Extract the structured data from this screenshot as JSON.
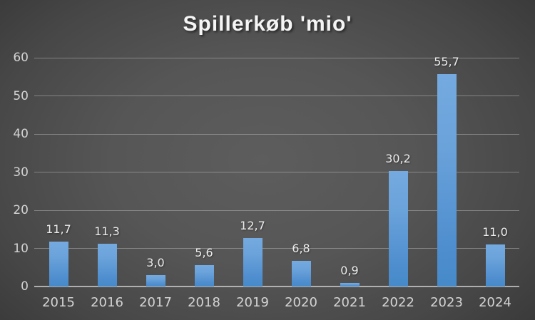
{
  "chart_data": {
    "type": "bar",
    "title": "Spillerkøb 'mio'",
    "categories": [
      "2015",
      "2016",
      "2017",
      "2018",
      "2019",
      "2020",
      "2021",
      "2022",
      "2023",
      "2024"
    ],
    "values": [
      11.7,
      11.3,
      3.0,
      5.6,
      12.7,
      6.8,
      0.9,
      30.2,
      55.7,
      11.0
    ],
    "value_labels": [
      "11,7",
      "11,3",
      "3,0",
      "5,6",
      "12,7",
      "6,8",
      "0,9",
      "30,2",
      "55,7",
      "11,0"
    ],
    "xlabel": "",
    "ylabel": "",
    "ylim": [
      0,
      60
    ],
    "yticks": [
      0,
      10,
      20,
      30,
      40,
      50,
      60
    ],
    "grid": true,
    "legend_position": "none",
    "decimal_separator": ",",
    "colors": {
      "bar_top": "#74aadf",
      "bar_bottom": "#468ac9",
      "background_center": "#5d5d5d",
      "background_edge": "#202020",
      "gridline": "#a9a9a9",
      "axis_line": "#c8c8c8",
      "tick_label": "#d4d4d4",
      "value_label": "#ececec",
      "title": "#f5f5f5"
    }
  }
}
